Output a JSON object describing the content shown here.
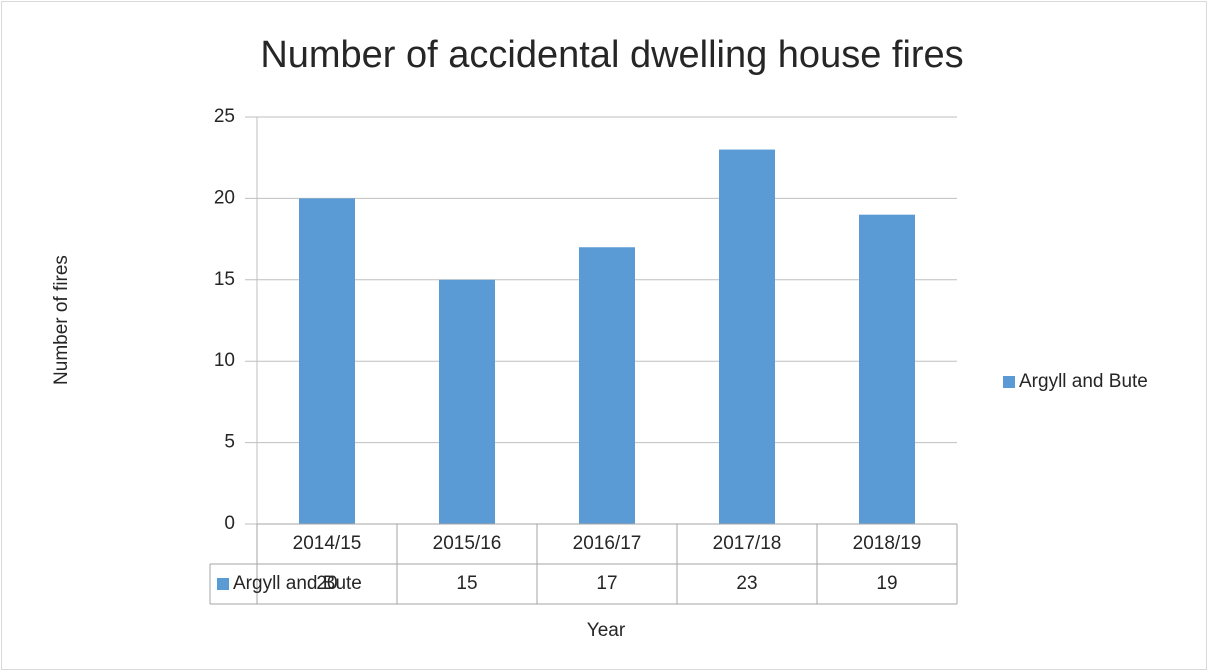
{
  "chart_data": {
    "type": "bar",
    "title": "Number of accidental dwelling house fires",
    "y_label": "Number of fires",
    "x_label": "Year",
    "categories": [
      "2014/15",
      "2015/16",
      "2016/17",
      "2017/18",
      "2018/19"
    ],
    "series": [
      {
        "name": "Argyll and Bute",
        "color": "#5b9bd5",
        "values": [
          20,
          15,
          17,
          23,
          19
        ]
      }
    ],
    "ylim": [
      0,
      25
    ],
    "yticks": [
      0,
      5,
      10,
      15,
      20,
      25
    ],
    "grid": true,
    "legend": "right",
    "data_table": true
  }
}
